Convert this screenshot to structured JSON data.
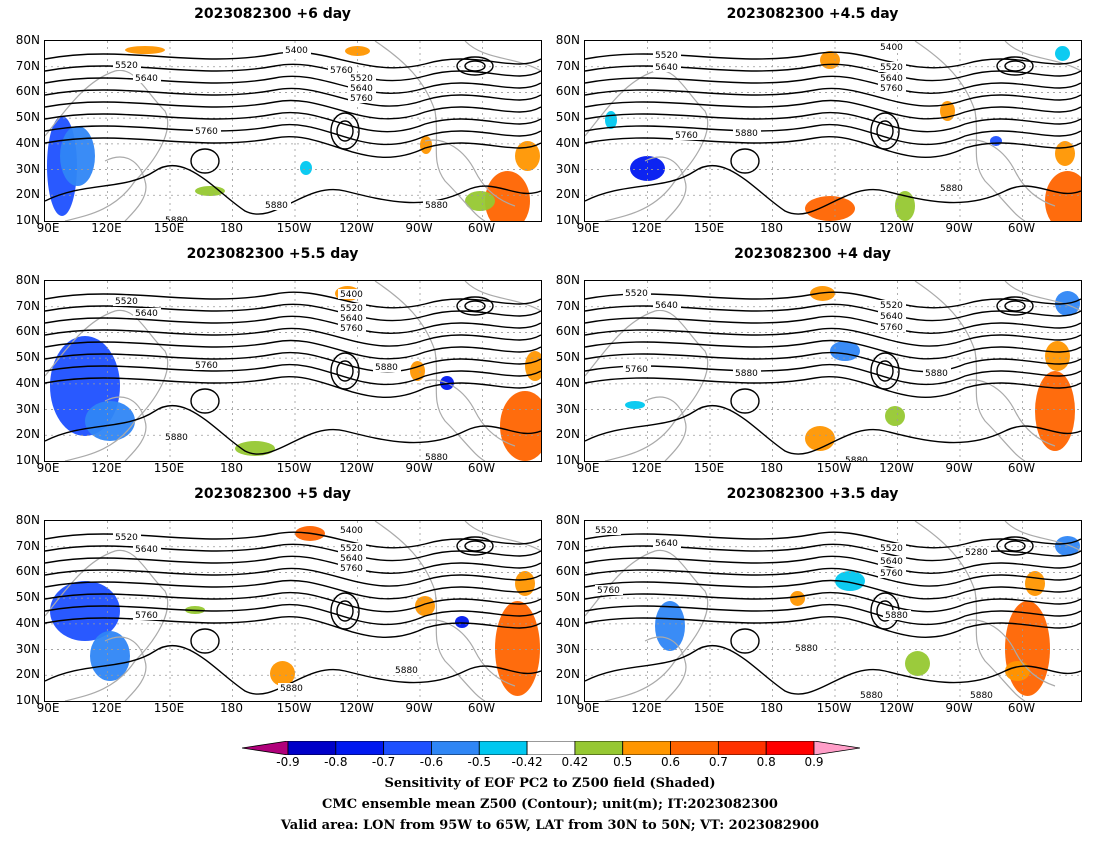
{
  "panels": [
    {
      "title": "2023082300 +6 day",
      "contour_labels": [
        "5400",
        "5520",
        "5640",
        "5760",
        "5520",
        "5640",
        "5760",
        "5760",
        "5880",
        "5880",
        "5880"
      ]
    },
    {
      "title": "2023082300 +4.5 day",
      "contour_labels": [
        "5520",
        "5640",
        "5400",
        "5520",
        "5640",
        "5760",
        "5760",
        "5880",
        "5880"
      ]
    },
    {
      "title": "2023082300 +5.5 day",
      "contour_labels": [
        "5520",
        "5640",
        "5400",
        "5520",
        "5640",
        "5760",
        "5760",
        "5880",
        "5880",
        "5880"
      ]
    },
    {
      "title": "2023082300 +4 day",
      "contour_labels": [
        "5520",
        "5640",
        "5520",
        "5640",
        "5760",
        "5760",
        "5880",
        "5880",
        "5880"
      ]
    },
    {
      "title": "2023082300 +5 day",
      "contour_labels": [
        "5520",
        "5640",
        "5400",
        "5520",
        "5640",
        "5760",
        "5760",
        "5880",
        "5880"
      ]
    },
    {
      "title": "2023082300 +3.5 day",
      "contour_labels": [
        "5520",
        "5640",
        "5520",
        "5640",
        "5760",
        "5280",
        "5760",
        "5880",
        "5880",
        "5880",
        "5880"
      ]
    }
  ],
  "lat_labels": [
    "80N",
    "70N",
    "60N",
    "50N",
    "40N",
    "30N",
    "20N",
    "10N"
  ],
  "lon_labels": [
    "90E",
    "120E",
    "150E",
    "180",
    "150W",
    "120W",
    "90W",
    "60W"
  ],
  "colorbar": {
    "ticks": [
      "-0.9",
      "-0.8",
      "-0.7",
      "-0.6",
      "-0.5",
      "-0.42",
      "0.42",
      "0.5",
      "0.6",
      "0.7",
      "0.8",
      "0.9"
    ],
    "colors": [
      "#b0007a",
      "#0000c8",
      "#0018f0",
      "#1e50ff",
      "#2f86f5",
      "#00c8f0",
      "#ffffff",
      "#96c832",
      "#ff9600",
      "#ff6400",
      "#ff3200",
      "#ff0000",
      "#ff9ec8"
    ]
  },
  "footer": {
    "line1": "Sensitivity of EOF PC2 to Z500 field (Shaded)",
    "line2": "CMC ensemble mean Z500 (Contour); unit(m); IT:2023082300",
    "line3": "Valid area: LON from 95W to 65W, LAT from 30N to 50N; VT: 2023082900"
  }
}
